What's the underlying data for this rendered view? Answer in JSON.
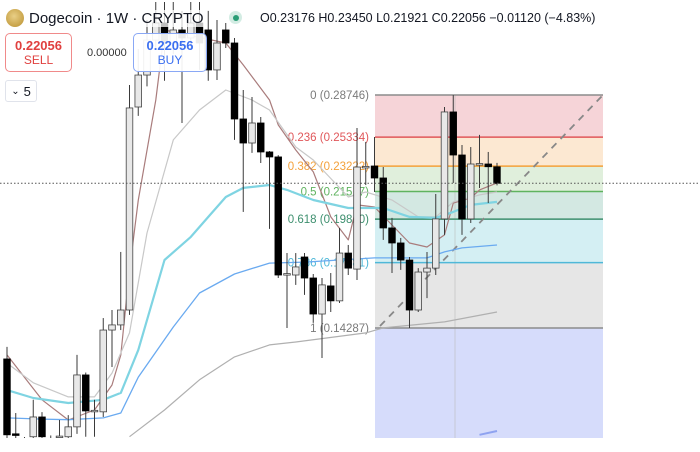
{
  "header": {
    "title": "Dogecoin · 1W · CRYPTO",
    "market_status_color": "#2a9d76",
    "ohlc": "O0.23176 H0.23450 L0.21921 C0.22056 −0.01120 (−4.83%)"
  },
  "trade": {
    "sell_price": "0.22056",
    "sell_label": "SELL",
    "spread": "0.00000",
    "buy_price": "0.22056",
    "buy_label": "BUY",
    "quantity": "5",
    "quantity_icon": "chevron-down-icon"
  },
  "chart_data": {
    "type": "candlestick",
    "y_scale": "log",
    "last_price": 0.22056,
    "candles": [
      [
        0.1302,
        0.135,
        0.1027,
        0.1037
      ],
      [
        0.104,
        0.1107,
        0.1027,
        0.1035
      ],
      [
        0.102,
        0.103,
        0.1005,
        0.1015
      ],
      [
        0.1031,
        0.1152,
        0.1027,
        0.1094
      ],
      [
        0.1094,
        0.111,
        0.1025,
        0.1031
      ],
      [
        0.102,
        0.1035,
        0.101,
        0.1025
      ],
      [
        0.1031,
        0.1084,
        0.1027,
        0.1033
      ],
      [
        0.1031,
        0.11,
        0.1027,
        0.1062
      ],
      [
        0.1062,
        0.1318,
        0.104,
        0.1241
      ],
      [
        0.1241,
        0.125,
        0.1031,
        0.1114
      ],
      [
        0.1114,
        0.1152,
        0.1031,
        0.1116
      ],
      [
        0.1111,
        0.1472,
        0.1094,
        0.142
      ],
      [
        0.142,
        0.1508,
        0.1271,
        0.1442
      ],
      [
        0.1442,
        0.1795,
        0.142,
        0.1508
      ],
      [
        0.1508,
        0.2962,
        0.1486,
        0.2765
      ],
      [
        0.2773,
        0.33,
        0.27,
        0.3052
      ],
      [
        0.3052,
        0.36,
        0.295,
        0.339
      ],
      [
        0.339,
        0.38,
        0.33,
        0.3568
      ],
      [
        0.3568,
        0.38,
        0.3,
        0.336
      ],
      [
        0.336,
        0.38,
        0.325,
        0.3494
      ],
      [
        0.3494,
        0.37,
        0.2643,
        0.3411
      ],
      [
        0.3411,
        0.38,
        0.33,
        0.3568
      ],
      [
        0.3568,
        0.38,
        0.31,
        0.336
      ],
      [
        0.3494,
        0.37,
        0.3,
        0.3099
      ],
      [
        0.3099,
        0.36,
        0.3007,
        0.336
      ],
      [
        0.3494,
        0.3568,
        0.331,
        0.336
      ],
      [
        0.336,
        0.3411,
        0.2512,
        0.2675
      ],
      [
        0.2675,
        0.2918,
        0.2024,
        0.2489
      ],
      [
        0.2489,
        0.2857,
        0.2416,
        0.2643
      ],
      [
        0.2643,
        0.2691,
        0.2344,
        0.2423
      ],
      [
        0.2423,
        0.243,
        0.1924,
        0.2387
      ],
      [
        0.2387,
        0.24,
        0.166,
        0.1675
      ],
      [
        0.168,
        0.1789,
        0.1429,
        0.1682
      ],
      [
        0.1675,
        0.1789,
        0.1626,
        0.1716
      ],
      [
        0.1768,
        0.1789,
        0.1578,
        0.166
      ],
      [
        0.166,
        0.168,
        0.1451,
        0.149
      ],
      [
        0.149,
        0.166,
        0.1306,
        0.1626
      ],
      [
        0.1621,
        0.1685,
        0.1499,
        0.155
      ],
      [
        0.155,
        0.1929,
        0.154,
        0.1789
      ],
      [
        0.1789,
        0.1833,
        0.1675,
        0.171
      ],
      [
        0.1705,
        0.2604,
        0.165,
        0.2316
      ],
      [
        0.2316,
        0.2497,
        0.2194,
        0.232
      ],
      [
        0.2323,
        0.2534,
        0.2149,
        0.2241
      ],
      [
        0.2241,
        0.2316,
        0.1861,
        0.1929
      ],
      [
        0.1929,
        0.1988,
        0.1685,
        0.1844
      ],
      [
        0.1844,
        0.1872,
        0.1701,
        0.1752
      ],
      [
        0.1752,
        0.1768,
        0.1429,
        0.1508
      ],
      [
        0.1508,
        0.171,
        0.1499,
        0.169
      ],
      [
        0.169,
        0.1795,
        0.1563,
        0.171
      ],
      [
        0.171,
        0.2136,
        0.1675,
        0.1982
      ],
      [
        0.1982,
        0.2773,
        0.1889,
        0.2732
      ],
      [
        0.2732,
        0.2874,
        0.2208,
        0.2401
      ],
      [
        0.2401,
        0.2474,
        0.1889,
        0.1982
      ],
      [
        0.1982,
        0.2459,
        0.1958,
        0.2337
      ],
      [
        0.2337,
        0.255,
        0.2175,
        0.234
      ],
      [
        0.2337,
        0.2423,
        0.2079,
        0.2318
      ],
      [
        0.23176,
        0.2345,
        0.21921,
        0.22056
      ]
    ],
    "candle_format": [
      "open",
      "high",
      "low",
      "close"
    ],
    "moving_averages": [
      {
        "color": "#a97c7c",
        "width": 1.2,
        "points": [
          [
            0,
            0.1318
          ],
          [
            4,
            0.1152
          ],
          [
            7,
            0.1084
          ],
          [
            10,
            0.1117
          ],
          [
            12,
            0.1204
          ],
          [
            13,
            0.1318
          ],
          [
            14,
            0.17
          ],
          [
            15,
            0.2098
          ],
          [
            17,
            0.2832
          ],
          [
            18,
            0.3494
          ],
          [
            25,
            0.336
          ],
          [
            27,
            0.3145
          ],
          [
            30,
            0.2832
          ],
          [
            31,
            0.2627
          ],
          [
            33,
            0.2437
          ],
          [
            35,
            0.2282
          ],
          [
            37,
            0.1994
          ],
          [
            39,
            0.1861
          ],
          [
            40,
            0.2067
          ],
          [
            42,
            0.2054
          ],
          [
            44,
            0.1946
          ],
          [
            46,
            0.1844
          ],
          [
            48,
            0.1822
          ],
          [
            50,
            0.1889
          ],
          [
            51,
            0.2079
          ],
          [
            53,
            0.2111
          ],
          [
            54,
            0.2162
          ],
          [
            56,
            0.2208
          ]
        ]
      },
      {
        "color": "#c8c8c8",
        "width": 1.2,
        "points": [
          [
            0,
            0.1286
          ],
          [
            3,
            0.1212
          ],
          [
            7,
            0.1162
          ],
          [
            10,
            0.1162
          ],
          [
            12,
            0.1248
          ],
          [
            14,
            0.1408
          ],
          [
            16,
            0.19
          ],
          [
            19,
            0.2512
          ],
          [
            22,
            0.2748
          ],
          [
            25,
            0.2918
          ],
          [
            28,
            0.2832
          ],
          [
            30,
            0.2748
          ],
          [
            33,
            0.2459
          ],
          [
            35,
            0.2365
          ],
          [
            39,
            0.2117
          ],
          [
            41,
            0.2149
          ],
          [
            44,
            0.2098
          ],
          [
            47,
            0.1994
          ],
          [
            49,
            0.1994
          ],
          [
            51,
            0.2086
          ],
          [
            54,
            0.213
          ],
          [
            56,
            0.2149
          ]
        ]
      },
      {
        "color": "#7fd4e2",
        "width": 2.2,
        "points": [
          [
            0,
            0.1186
          ],
          [
            3,
            0.1158
          ],
          [
            7,
            0.1141
          ],
          [
            11,
            0.1152
          ],
          [
            13,
            0.1176
          ],
          [
            15,
            0.1338
          ],
          [
            18,
            0.1752
          ],
          [
            21,
            0.1878
          ],
          [
            23,
            0.1994
          ],
          [
            25,
            0.2117
          ],
          [
            27,
            0.2175
          ],
          [
            30,
            0.2194
          ],
          [
            32,
            0.2162
          ],
          [
            35,
            0.2098
          ],
          [
            39,
            0.2048
          ],
          [
            43,
            0.2048
          ],
          [
            46,
            0.1994
          ],
          [
            49,
            0.1988
          ],
          [
            51,
            0.2024
          ],
          [
            53,
            0.2067
          ],
          [
            56,
            0.2086
          ]
        ]
      },
      {
        "color": "#6aaaf0",
        "width": 1.3,
        "points": [
          [
            0,
            0.1091
          ],
          [
            4,
            0.1087
          ],
          [
            7,
            0.1085
          ],
          [
            11,
            0.1091
          ],
          [
            13,
            0.1107
          ],
          [
            15,
            0.1233
          ],
          [
            19,
            0.1433
          ],
          [
            22,
            0.1587
          ],
          [
            26,
            0.168
          ],
          [
            30,
            0.1736
          ],
          [
            34,
            0.1741
          ],
          [
            42,
            0.1763
          ],
          [
            48,
            0.1763
          ],
          [
            50,
            0.1795
          ],
          [
            52,
            0.1817
          ],
          [
            56,
            0.1833
          ]
        ]
      },
      {
        "color": "#b0b0b0",
        "width": 1.2,
        "points": [
          [
            14,
            0.1031
          ],
          [
            18,
            0.1117
          ],
          [
            22,
            0.1223
          ],
          [
            26,
            0.131
          ],
          [
            30,
            0.1358
          ],
          [
            33,
            0.137
          ],
          [
            41,
            0.1408
          ],
          [
            43,
            0.1429
          ],
          [
            50,
            0.1455
          ],
          [
            56,
            0.1499
          ]
        ]
      },
      {
        "color": "#8fa3f0",
        "width": 2,
        "points": [
          [
            54,
            0.1037
          ],
          [
            56,
            0.1049
          ]
        ]
      }
    ],
    "fibonacci": {
      "levels": [
        {
          "ratio": "0",
          "price": 0.28746,
          "label": "0 (0.28746)",
          "line": "#8c8c8c",
          "fill": "#f6d4d8",
          "text": "#7a7a7a"
        },
        {
          "ratio": "0.236",
          "price": 0.25334,
          "label": "0.236 (0.25334)",
          "line": "#e0575a",
          "fill": "#fce8d2",
          "text": "#e0575a"
        },
        {
          "ratio": "0.382",
          "price": 0.23222,
          "label": "0.382 (0.23222)",
          "line": "#f4a13a",
          "fill": "#e0efdc",
          "text": "#f4a13a"
        },
        {
          "ratio": "0.5",
          "price": 0.21517,
          "label": "0.5 (0.21517)",
          "line": "#5fb35f",
          "fill": "#d3e8e2",
          "text": "#5fb35f"
        },
        {
          "ratio": "0.618",
          "price": 0.1981,
          "label": "0.618 (0.19810)",
          "line": "#3d8f6e",
          "fill": "#d4eff3",
          "text": "#3d8f6e"
        },
        {
          "ratio": "0.786",
          "price": 0.17381,
          "label": "0.786 (0.17381)",
          "line": "#4fb8d8",
          "fill": "#e6e6e6",
          "text": "#4fb8d8"
        },
        {
          "ratio": "1",
          "price": 0.14287,
          "label": "1 (0.14287)",
          "line": "#8c8c8c",
          "fill": "#d6dcfb",
          "text": "#7a7a7a"
        }
      ],
      "trend_line": "dashed"
    }
  }
}
